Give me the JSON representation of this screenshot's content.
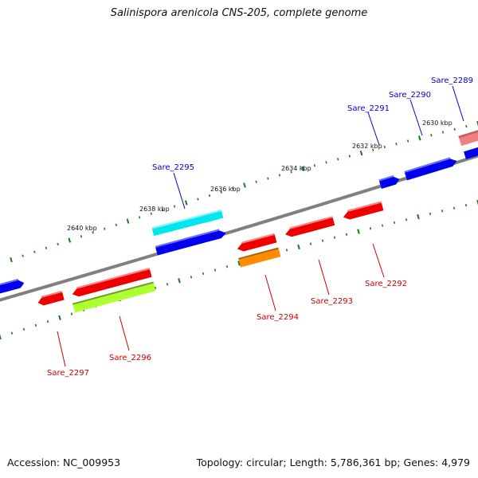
{
  "title": "Salinispora arenicola CNS-205, complete genome",
  "footer": {
    "accession": "Accession: NC_009953",
    "summary": "Topology: circular; Length: 5,786,361 bp; Genes: 4,979"
  },
  "kbp_labels": [
    "2640 kbp",
    "2638 kbp",
    "2636 kbp",
    "2634 kbp",
    "2632 kbp",
    "2630 kbp"
  ],
  "colors": {
    "backbone": "#808080",
    "tick": "#1a7a1a",
    "forward_label": "#0000cc",
    "reverse_label": "#cc0000",
    "blue_gene": "#0000ee",
    "red_gene": "#ee0000",
    "cyan_gene": "#00e5ee",
    "orange_gene": "#ff8c00",
    "lime_gene": "#adff2f",
    "salmon_gene": "#f08080"
  },
  "forward_labels": [
    "Sare_2295",
    "Sare_2291",
    "Sare_2290",
    "Sare_2289"
  ],
  "reverse_labels": [
    "Sare_2297",
    "Sare_2296",
    "Sare_2294",
    "Sare_2293",
    "Sare_2292"
  ]
}
